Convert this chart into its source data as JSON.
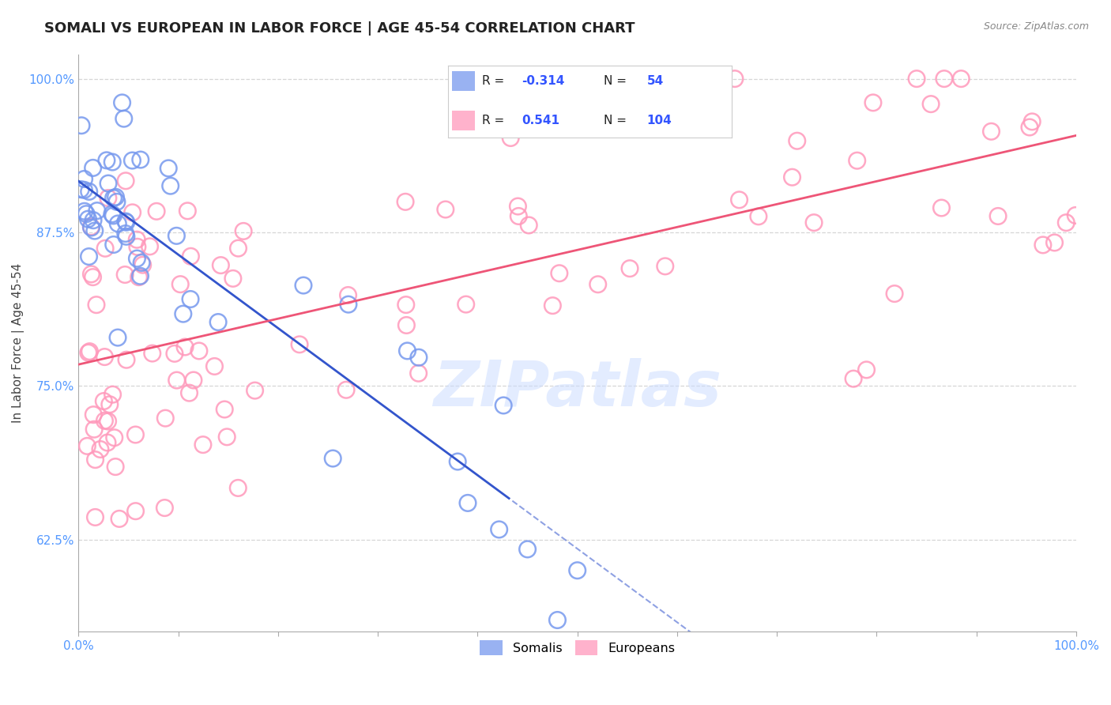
{
  "title": "SOMALI VS EUROPEAN IN LABOR FORCE | AGE 45-54 CORRELATION CHART",
  "source_text": "Source: ZipAtlas.com",
  "ylabel": "In Labor Force | Age 45-54",
  "watermark": "ZIPatlas",
  "somali_label": "Somalis",
  "european_label": "Europeans",
  "somali_R": -0.314,
  "somali_N": 54,
  "european_R": 0.541,
  "european_N": 104,
  "xlim": [
    0,
    100
  ],
  "ylim": [
    55,
    102
  ],
  "yticks": [
    62.5,
    75.0,
    87.5,
    100.0
  ],
  "yticklabels": [
    "62.5%",
    "75.0%",
    "87.5%",
    "100.0%"
  ],
  "xticklabels": [
    "0.0%",
    "100.0%"
  ],
  "background_color": "#ffffff",
  "grid_color": "#cccccc",
  "somali_color": "#7799ee",
  "european_color": "#ff99bb",
  "somali_line_color": "#3355cc",
  "european_line_color": "#ee5577",
  "title_fontsize": 13,
  "axis_label_fontsize": 11,
  "tick_fontsize": 11,
  "legend_R_color": "#3355ff",
  "legend_N_color": "#cc0000",
  "ytick_color": "#5599ff"
}
